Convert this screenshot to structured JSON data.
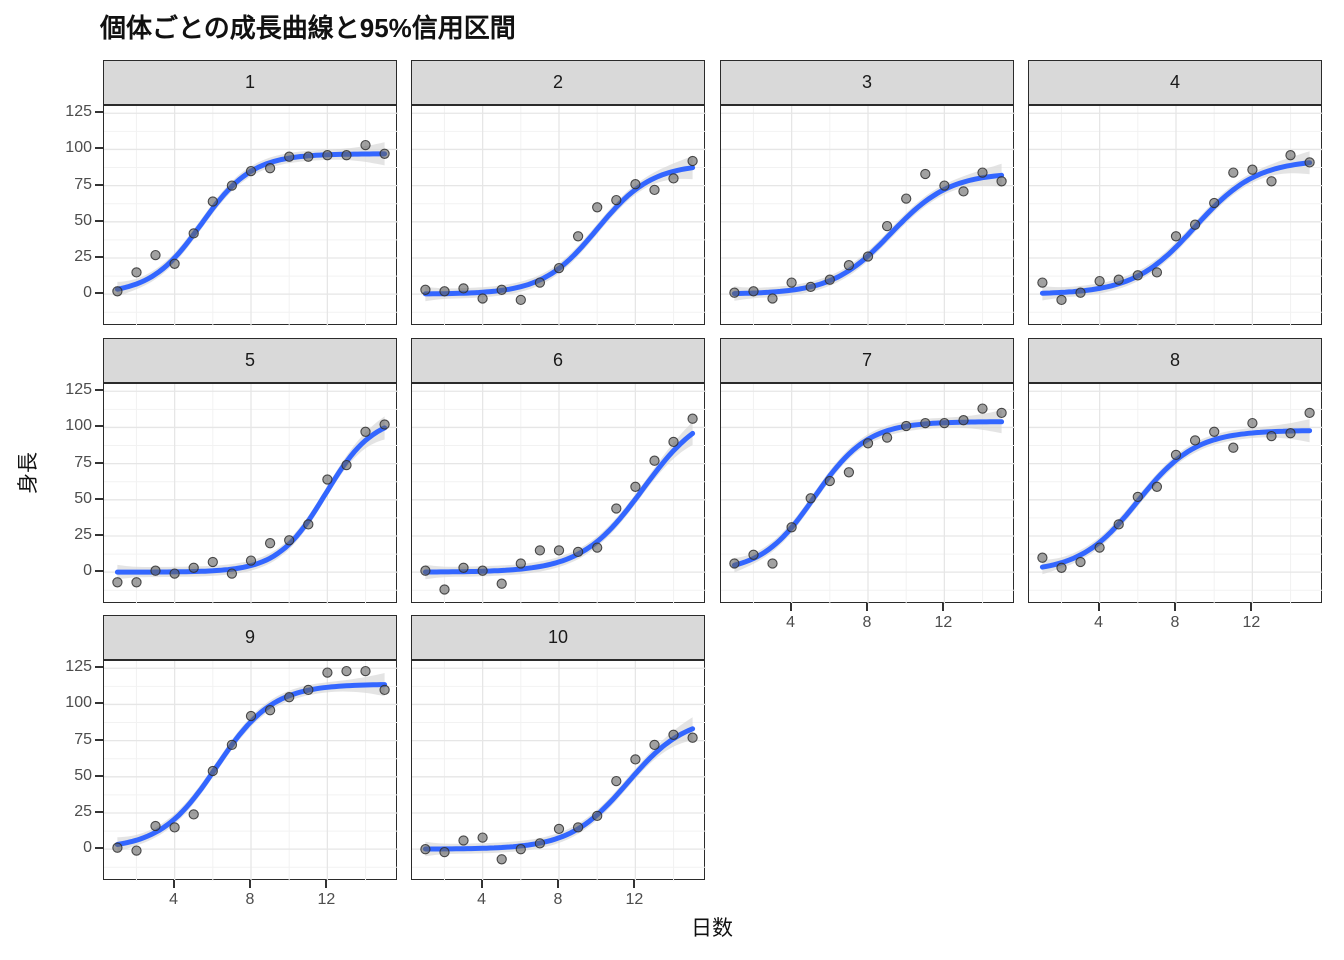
{
  "title": "個体ごとの成長曲線と95%信用区間",
  "x_axis_title": "日数",
  "y_axis_title": "身長",
  "chart_data": {
    "type": "scatter",
    "title": "個体ごとの成長曲線と95%信用区間",
    "xlabel": "日数",
    "ylabel": "身長",
    "legend_position": "none",
    "grid": true,
    "x_ticks": [
      4,
      8,
      12
    ],
    "y_ticks": [
      0,
      25,
      50,
      75,
      100,
      125
    ],
    "x_minor_ticks": [
      2,
      6,
      10,
      14
    ],
    "y_minor_ticks": [
      -12.5,
      12.5,
      37.5,
      62.5,
      87.5,
      112.5
    ],
    "x_range": [
      0.3,
      15.7
    ],
    "y_range": [
      -22,
      130
    ],
    "x": [
      1,
      2,
      3,
      4,
      5,
      6,
      7,
      8,
      9,
      10,
      11,
      12,
      13,
      14,
      15
    ],
    "facets": [
      {
        "label": "1",
        "points": [
          2,
          15,
          27,
          21,
          42,
          64,
          75,
          85,
          87,
          95,
          95,
          96,
          96,
          103,
          97
        ],
        "fit": {
          "L": 97,
          "k": 0.75,
          "x0": 5.4
        }
      },
      {
        "label": "2",
        "points": [
          3,
          2,
          4,
          -3,
          3,
          -4,
          8,
          18,
          40,
          60,
          65,
          76,
          72,
          80,
          92
        ],
        "fit": {
          "L": 90,
          "k": 0.7,
          "x0": 10.0
        }
      },
      {
        "label": "3",
        "points": [
          1,
          2,
          -3,
          8,
          5,
          10,
          20,
          26,
          47,
          66,
          83,
          75,
          71,
          84,
          78
        ],
        "fit": {
          "L": 84,
          "k": 0.65,
          "x0": 9.2
        }
      },
      {
        "label": "4",
        "points": [
          8,
          -4,
          1,
          9,
          10,
          13,
          15,
          40,
          48,
          63,
          84,
          86,
          78,
          96,
          91
        ],
        "fit": {
          "L": 93,
          "k": 0.62,
          "x0": 9.0
        }
      },
      {
        "label": "5",
        "points": [
          -7,
          -7,
          1,
          -1,
          3,
          7,
          -1,
          8,
          20,
          22,
          33,
          64,
          74,
          97,
          102
        ],
        "fit": {
          "L": 108,
          "k": 0.8,
          "x0": 11.9
        }
      },
      {
        "label": "6",
        "points": [
          1,
          -12,
          3,
          1,
          -8,
          6,
          15,
          15,
          14,
          17,
          44,
          59,
          77,
          90,
          106
        ],
        "fit": {
          "L": 115,
          "k": 0.62,
          "x0": 12.4
        }
      },
      {
        "label": "7",
        "points": [
          6,
          12,
          6,
          31,
          51,
          63,
          69,
          89,
          93,
          101,
          103,
          103,
          105,
          113,
          110
        ],
        "fit": {
          "L": 104,
          "k": 0.72,
          "x0": 5.2
        }
      },
      {
        "label": "8",
        "points": [
          10,
          3,
          7,
          17,
          33,
          52,
          59,
          81,
          91,
          97,
          86,
          103,
          94,
          96,
          110
        ],
        "fit": {
          "L": 98,
          "k": 0.66,
          "x0": 6.0
        }
      },
      {
        "label": "9",
        "points": [
          1,
          -1,
          16,
          15,
          24,
          54,
          72,
          92,
          96,
          105,
          110,
          122,
          123,
          123,
          110
        ],
        "fit": {
          "L": 114,
          "k": 0.68,
          "x0": 6.2
        }
      },
      {
        "label": "10",
        "points": [
          0,
          -2,
          6,
          8,
          -7,
          0,
          4,
          14,
          15,
          23,
          47,
          62,
          72,
          79,
          77
        ],
        "fit": {
          "L": 92,
          "k": 0.66,
          "x0": 11.6
        }
      }
    ],
    "colors": {
      "smooth_line": "#3366FF",
      "ribbon": "#D6D6D6",
      "point_fill": "#636363",
      "point_stroke": "#2E2E2E",
      "strip_background": "#D9D9D9",
      "grid_major": "#E6E6E6",
      "grid_minor": "#F2F2F2",
      "panel_border": "#2B2B2B",
      "tick_label": "#4D4D4D"
    }
  }
}
